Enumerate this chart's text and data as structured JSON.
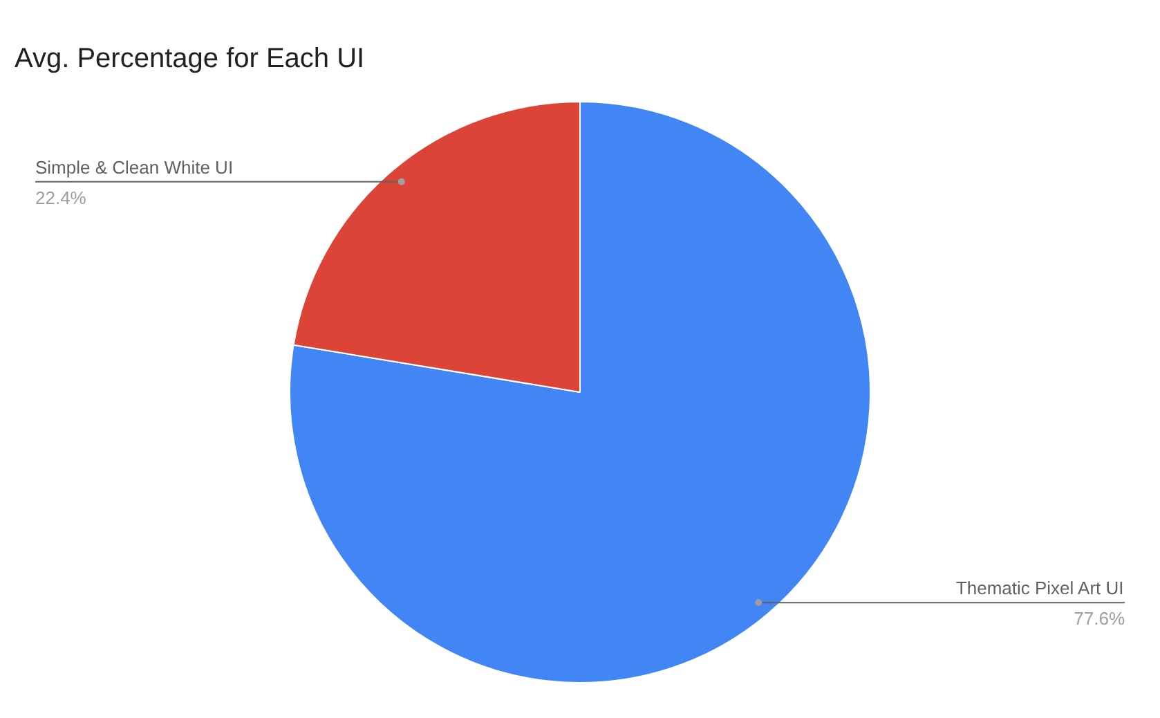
{
  "chart_data": {
    "type": "pie",
    "title": "Avg. Percentage for Each UI",
    "categories": [
      "Thematic Pixel Art UI",
      "Simple & Clean White UI"
    ],
    "values": [
      77.6,
      22.4
    ],
    "colors": [
      "#4285f4",
      "#db4437"
    ],
    "value_labels": [
      "77.6%",
      "22.4%"
    ]
  }
}
